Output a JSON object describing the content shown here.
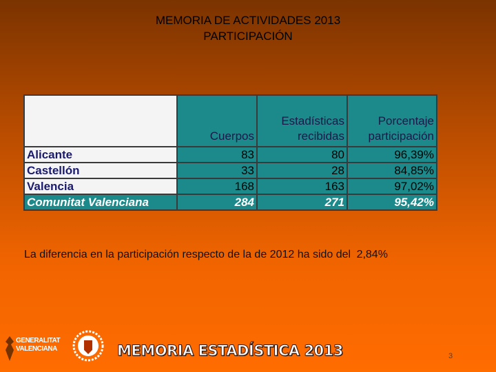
{
  "title": {
    "line1": "MEMORIA DE ACTIVIDADES 2013",
    "line2": "PARTICIPACIÓN"
  },
  "table": {
    "header": [
      "",
      "Cuerpos",
      "Estadísticas recibidas",
      "Porcentaje participación"
    ],
    "rows": [
      [
        "Alicante",
        "83",
        "80",
        "96,39%"
      ],
      [
        "Castellón",
        "33",
        "28",
        "84,85%"
      ],
      [
        "Valencia",
        "168",
        "163",
        "97,02%"
      ],
      [
        "Comunitat Valenciana",
        "284",
        "271",
        "95,42%"
      ]
    ]
  },
  "note": {
    "text": "La diferencia en la participación respecto de la de 2012 ha sido del",
    "value": "2,84%"
  },
  "footer": {
    "logo_line1": "GENERALITAT",
    "logo_line2": "VALENCIANA",
    "banner": "MEMORIA ESTADÍSTICA 2013",
    "page": "3"
  }
}
